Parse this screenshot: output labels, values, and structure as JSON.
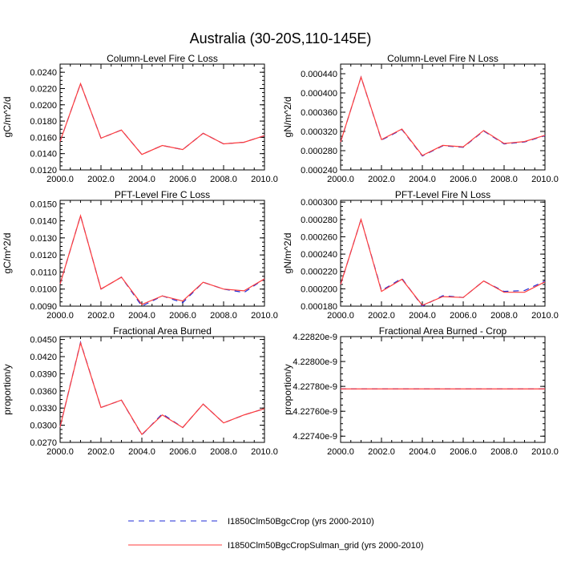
{
  "figure": {
    "title": "Australia (30-20S,110-145E)"
  },
  "colors": {
    "series1": "#1f2bd6",
    "series2": "#ff3c3c",
    "axis": "#000000"
  },
  "legend": {
    "placement": "bottom-center",
    "items": [
      {
        "label": "I1850Clm50BgcCrop (yrs 2000-2010)",
        "style": "dashed",
        "color": "#1f2bd6"
      },
      {
        "label": "I1850Clm50BgcCropSulman_grid (yrs 2000-2010)",
        "style": "solid",
        "color": "#ff3c3c"
      }
    ]
  },
  "chart_data": [
    {
      "type": "line",
      "title": "Column-Level Fire C Loss",
      "xlabel": "",
      "ylabel": "gC/m^2/d",
      "xlim": [
        2000,
        2010
      ],
      "ylim": [
        0.012,
        0.025
      ],
      "xticks": [
        "2000.0",
        "2002.0",
        "2004.0",
        "2006.0",
        "2008.0",
        "2010.0"
      ],
      "yticks": [
        "0.0120",
        "0.0140",
        "0.0160",
        "0.0180",
        "0.0200",
        "0.0220",
        "0.0240"
      ],
      "x": [
        2000,
        2001,
        2002,
        2003,
        2004,
        2005,
        2006,
        2007,
        2008,
        2009,
        2010
      ],
      "series": [
        {
          "name": "I1850Clm50BgcCrop (yrs 2000-2010)",
          "style": "dashed",
          "values": [
            0.0155,
            0.0226,
            0.0159,
            0.0169,
            0.0139,
            0.015,
            0.0145,
            0.0165,
            0.0152,
            0.0154,
            0.0162
          ]
        },
        {
          "name": "I1850Clm50BgcCropSulman_grid (yrs 2000-2010)",
          "style": "solid",
          "values": [
            0.0155,
            0.0226,
            0.0159,
            0.0169,
            0.0139,
            0.015,
            0.0145,
            0.0165,
            0.0152,
            0.0154,
            0.0162
          ]
        }
      ]
    },
    {
      "type": "line",
      "title": "Column-Level Fire N Loss",
      "xlabel": "",
      "ylabel": "gN/m^2/d",
      "xlim": [
        2000,
        2010
      ],
      "ylim": [
        0.00024,
        0.00046
      ],
      "xticks": [
        "2000.0",
        "2002.0",
        "2004.0",
        "2006.0",
        "2008.0",
        "2010.0"
      ],
      "yticks": [
        "0.000240",
        "0.000280",
        "0.000320",
        "0.000360",
        "0.000400",
        "0.000440"
      ],
      "x": [
        2000,
        2001,
        2002,
        2003,
        2004,
        2005,
        2006,
        2007,
        2008,
        2009,
        2010
      ],
      "series": [
        {
          "name": "I1850Clm50BgcCrop (yrs 2000-2010)",
          "style": "dashed",
          "values": [
            0.000298,
            0.000433,
            0.000302,
            0.000324,
            0.000269,
            0.00029,
            0.000287,
            0.000321,
            0.000294,
            0.000298,
            0.000311
          ]
        },
        {
          "name": "I1850Clm50BgcCropSulman_grid (yrs 2000-2010)",
          "style": "solid",
          "values": [
            0.000298,
            0.000433,
            0.000303,
            0.000325,
            0.00027,
            0.000291,
            0.000288,
            0.000322,
            0.000295,
            0.000299,
            0.000312
          ]
        }
      ]
    },
    {
      "type": "line",
      "title": "PFT-Level Fire C Loss",
      "xlabel": "",
      "ylabel": "gC/m^2/d",
      "xlim": [
        2000,
        2010
      ],
      "ylim": [
        0.009,
        0.0152
      ],
      "xticks": [
        "2000.0",
        "2002.0",
        "2004.0",
        "2006.0",
        "2008.0",
        "2010.0"
      ],
      "yticks": [
        "0.0090",
        "0.0100",
        "0.0110",
        "0.0120",
        "0.0130",
        "0.0140",
        "0.0150"
      ],
      "x": [
        2000,
        2001,
        2002,
        2003,
        2004,
        2005,
        2006,
        2007,
        2008,
        2009,
        2010
      ],
      "series": [
        {
          "name": "I1850Clm50BgcCrop (yrs 2000-2010)",
          "style": "dashed",
          "values": [
            0.0103,
            0.0143,
            0.01,
            0.0107,
            0.009,
            0.0096,
            0.0092,
            0.0104,
            0.01,
            0.0098,
            0.0106
          ]
        },
        {
          "name": "I1850Clm50BgcCropSulman_grid (yrs 2000-2010)",
          "style": "solid",
          "values": [
            0.0103,
            0.0143,
            0.01,
            0.0107,
            0.0091,
            0.0096,
            0.0093,
            0.0104,
            0.01,
            0.0099,
            0.0106
          ]
        }
      ]
    },
    {
      "type": "line",
      "title": "PFT-Level Fire N Loss",
      "xlabel": "",
      "ylabel": "gN/m^2/d",
      "xlim": [
        2000,
        2010
      ],
      "ylim": [
        0.00018,
        0.000302
      ],
      "xticks": [
        "2000.0",
        "2002.0",
        "2004.0",
        "2006.0",
        "2008.0",
        "2010.0"
      ],
      "yticks": [
        "0.000180",
        "0.000200",
        "0.000220",
        "0.000240",
        "0.000260",
        "0.000280",
        "0.000300"
      ],
      "x": [
        2000,
        2001,
        2002,
        2003,
        2004,
        2005,
        2006,
        2007,
        2008,
        2009,
        2010
      ],
      "series": [
        {
          "name": "I1850Clm50BgcCrop (yrs 2000-2010)",
          "style": "dashed",
          "values": [
            0.000205,
            0.00028,
            0.000198,
            0.000212,
            0.00018,
            0.000192,
            0.00019,
            0.000209,
            0.000197,
            0.000198,
            0.000209
          ]
        },
        {
          "name": "I1850Clm50BgcCropSulman_grid (yrs 2000-2010)",
          "style": "solid",
          "values": [
            0.000205,
            0.00028,
            0.000197,
            0.000211,
            0.000181,
            0.000191,
            0.00019,
            0.000209,
            0.000196,
            0.000196,
            0.000208
          ]
        }
      ]
    },
    {
      "type": "line",
      "title": "Fractional Area Burned",
      "xlabel": "",
      "ylabel": "proportion/y",
      "xlim": [
        2000,
        2010
      ],
      "ylim": [
        0.027,
        0.0455
      ],
      "xticks": [
        "2000.0",
        "2002.0",
        "2004.0",
        "2006.0",
        "2008.0",
        "2010.0"
      ],
      "yticks": [
        "0.0270",
        "0.0300",
        "0.0330",
        "0.0360",
        "0.0390",
        "0.0420",
        "0.0450"
      ],
      "x": [
        2000,
        2001,
        2002,
        2003,
        2004,
        2005,
        2006,
        2007,
        2008,
        2009,
        2010
      ],
      "series": [
        {
          "name": "I1850Clm50BgcCrop (yrs 2000-2010)",
          "style": "dashed",
          "values": [
            0.0297,
            0.0445,
            0.0331,
            0.0344,
            0.0283,
            0.032,
            0.0296,
            0.0337,
            0.0304,
            0.0318,
            0.0329
          ]
        },
        {
          "name": "I1850Clm50BgcCropSulman_grid (yrs 2000-2010)",
          "style": "solid",
          "values": [
            0.0297,
            0.0444,
            0.0331,
            0.0344,
            0.0284,
            0.0318,
            0.0296,
            0.0337,
            0.0304,
            0.0318,
            0.0329
          ]
        }
      ]
    },
    {
      "type": "line",
      "title": "Fractional Area Burned - Crop",
      "xlabel": "",
      "ylabel": "proportion/y",
      "xlim": [
        2000,
        2010
      ],
      "ylim": [
        4.22735e-09,
        4.2282e-09
      ],
      "xticks": [
        "2000.0",
        "2002.0",
        "2004.0",
        "2006.0",
        "2008.0",
        "2010.0"
      ],
      "yticks": [
        "4.22740e-9",
        "4.22760e-9",
        "4.22780e-9",
        "4.22800e-9",
        "4.22820e-9"
      ],
      "x": [
        2000,
        2001,
        2002,
        2003,
        2004,
        2005,
        2006,
        2007,
        2008,
        2009,
        2010
      ],
      "series": [
        {
          "name": "I1850Clm50BgcCrop (yrs 2000-2010)",
          "style": "dashed",
          "values": [
            4.22778e-09,
            4.22778e-09,
            4.22778e-09,
            4.22778e-09,
            4.22778e-09,
            4.22778e-09,
            4.22778e-09,
            4.22778e-09,
            4.22778e-09,
            4.22778e-09,
            4.22778e-09
          ]
        },
        {
          "name": "I1850Clm50BgcCropSulman_grid (yrs 2000-2010)",
          "style": "solid",
          "values": [
            4.22778e-09,
            4.22778e-09,
            4.22778e-09,
            4.22778e-09,
            4.22778e-09,
            4.22778e-09,
            4.22778e-09,
            4.22778e-09,
            4.22778e-09,
            4.22778e-09,
            4.22778e-09
          ]
        }
      ]
    }
  ]
}
